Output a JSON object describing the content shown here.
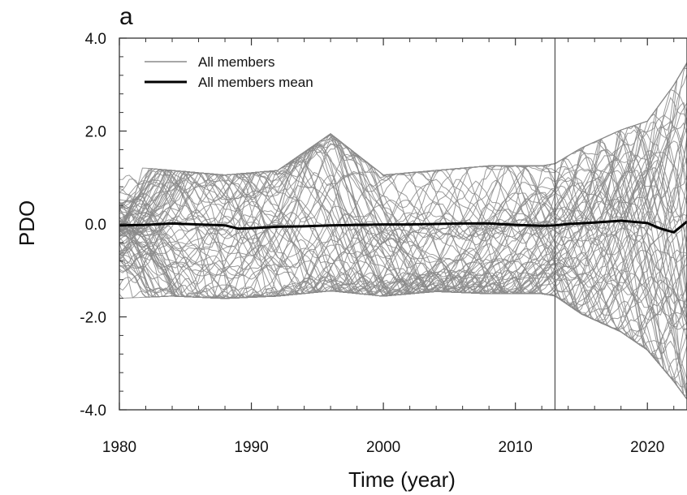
{
  "chart_data": {
    "type": "line",
    "panel_label": "a",
    "xlabel": "Time (year)",
    "ylabel": "PDO",
    "xlim": [
      1980,
      2023
    ],
    "ylim": [
      -4.0,
      4.0
    ],
    "x_ticks": [
      1980,
      1990,
      2000,
      2010,
      2020
    ],
    "x_tick_labels": [
      "1980",
      "1990",
      "2000",
      "2010",
      "2020"
    ],
    "y_ticks": [
      -4.0,
      -2.0,
      0.0,
      2.0,
      4.0
    ],
    "y_tick_labels": [
      "-4.0",
      "-2.0",
      "0.0",
      "2.0",
      "4.0"
    ],
    "grid": false,
    "legend_position": "top-left",
    "legend": [
      {
        "label": "All members",
        "color": "#8a8a8a"
      },
      {
        "label": "All members mean",
        "color": "#000000"
      }
    ],
    "reference_line_x": 2013,
    "ensemble_members_color": "#8a8a8a",
    "mean_color": "#000000",
    "series": [
      {
        "name": "All members mean",
        "x": [
          1980,
          1982,
          1984,
          1986,
          1988,
          1989,
          1990,
          1992,
          1994,
          1996,
          1998,
          2000,
          2002,
          2004,
          2006,
          2008,
          2010,
          2012,
          2013,
          2014,
          2016,
          2018,
          2020,
          2021,
          2022,
          2023
        ],
        "y": [
          -0.03,
          -0.02,
          0.01,
          -0.01,
          -0.03,
          -0.1,
          -0.09,
          -0.06,
          -0.05,
          -0.03,
          -0.02,
          -0.01,
          -0.01,
          0.0,
          0.01,
          0.01,
          -0.02,
          -0.04,
          -0.03,
          0.0,
          0.03,
          0.07,
          0.02,
          -0.1,
          -0.18,
          0.05
        ]
      }
    ],
    "envelope": {
      "x": [
        1980,
        1984,
        1988,
        1992,
        1996,
        2000,
        2004,
        2008,
        2012,
        2013,
        2015,
        2018,
        2020,
        2022,
        2023
      ],
      "upper": [
        1.3,
        1.2,
        1.1,
        1.2,
        2.0,
        1.1,
        1.2,
        1.3,
        1.3,
        1.35,
        1.7,
        2.1,
        2.3,
        3.1,
        3.6
      ],
      "lower": [
        -1.65,
        -1.6,
        -1.65,
        -1.6,
        -1.5,
        -1.6,
        -1.5,
        -1.55,
        -1.55,
        -1.6,
        -2.0,
        -2.4,
        -2.8,
        -3.5,
        -3.9
      ]
    },
    "member_count": 90
  }
}
